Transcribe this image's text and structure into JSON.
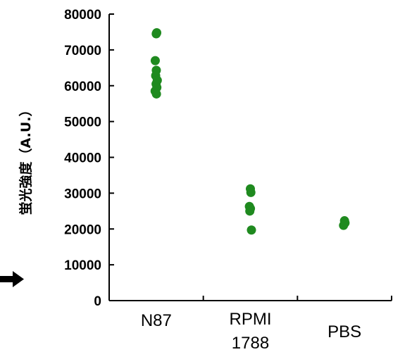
{
  "chart_data": {
    "type": "scatter",
    "ylabel": "蛍光強度（A.U.）",
    "ylim": [
      0,
      80000
    ],
    "yticks": [
      0,
      10000,
      20000,
      30000,
      40000,
      50000,
      60000,
      70000,
      80000
    ],
    "ytick_labels": [
      "0",
      "10000",
      "20000",
      "30000",
      "40000",
      "50000",
      "60000",
      "70000",
      "80000"
    ],
    "categories": [
      {
        "lines": [
          "N87"
        ]
      },
      {
        "lines": [
          "RPMI",
          "1788"
        ]
      },
      {
        "lines": [
          "PBS"
        ]
      }
    ],
    "points": [
      {
        "category": 0,
        "values": [
          74500,
          74800,
          67000,
          64300,
          62800,
          61500,
          60500,
          59500,
          58500,
          57700
        ]
      },
      {
        "category": 1,
        "values": [
          31200,
          30200,
          26300,
          25700,
          25000,
          19700
        ]
      },
      {
        "category": 2,
        "values": [
          22300,
          21700,
          21000
        ]
      }
    ],
    "marker_color": "#1f8a1f",
    "grid": false,
    "annotation": "arrow-at-10000"
  }
}
